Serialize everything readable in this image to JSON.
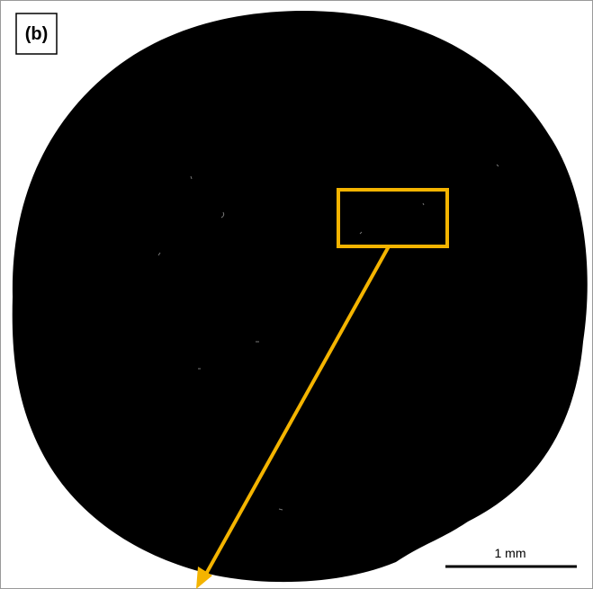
{
  "panel_label": "(b)",
  "scale_bar": {
    "label": "1 mm"
  }
}
